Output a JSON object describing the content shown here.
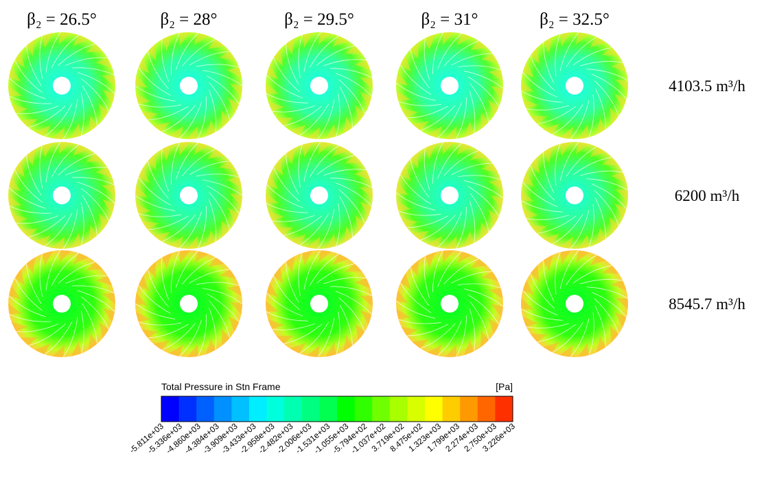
{
  "columns": [
    "β₂ = 26.5°",
    "β₂ = 28°",
    "β₂ = 29.5°",
    "β₂ = 31°",
    "β₂ = 32.5°"
  ],
  "rows": [
    "4103.5 m³/h",
    "6200 m³/h",
    "8545.7 m³/h"
  ],
  "legend": {
    "title": "Total Pressure in Stn Frame",
    "unit": "[Pa]",
    "ticks": [
      "-5.811e+03",
      "-5.336e+03",
      "-4.860e+03",
      "-4.384e+03",
      "-3.909e+03",
      "-3.433e+03",
      "-2.958e+03",
      "-2.482e+03",
      "-2.006e+03",
      "-1.531e+03",
      "-1.055e+03",
      "-5.794e+02",
      "-1.037e+02",
      "3.719e+02",
      "8.475e+02",
      "1.323e+03",
      "1.799e+03",
      "2.274e+03",
      "2.750e+03",
      "3.226e+03"
    ],
    "colors": [
      "#0000ff",
      "#0030ff",
      "#0060ff",
      "#0090ff",
      "#00c0ff",
      "#00eeff",
      "#00ffdd",
      "#00ffb0",
      "#00ff80",
      "#00ff50",
      "#00ff00",
      "#30ff00",
      "#70ff00",
      "#a8ff00",
      "#d8ff00",
      "#ffff00",
      "#ffcc00",
      "#ff9900",
      "#ff6600",
      "#ff3000"
    ]
  }
}
